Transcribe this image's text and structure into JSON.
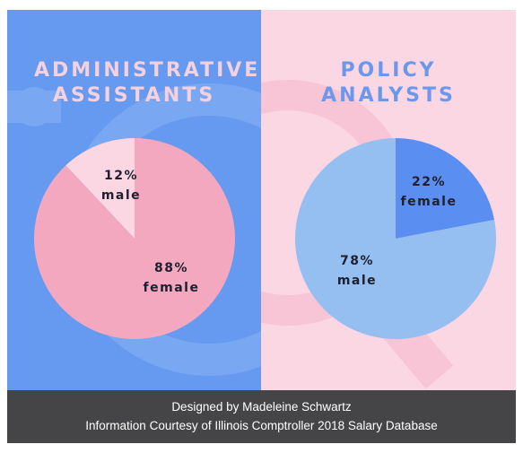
{
  "footer": {
    "line1": "Designed by Madeleine Schwartz",
    "line2": "Information Courtesy of Illinois Comptroller 2018 Salary Database"
  },
  "colors": {
    "left_background": "#6699f0",
    "right_background": "#fbd7e4",
    "footer_background": "#454547",
    "pink_slice": "#f4a8bf",
    "light_pink_slice": "#fbd7e4",
    "light_blue_slice": "#95bff1",
    "blue_slice": "#5a8ef0",
    "label_text": "#1f1f2e"
  },
  "chart_data": [
    {
      "type": "pie",
      "title": "ADMINISTRATIVE ASSISTANTS",
      "slices": [
        {
          "value": 12,
          "pct_label": "12%",
          "label": "male",
          "color": "#fbd7e4"
        },
        {
          "value": 88,
          "pct_label": "88%",
          "label": "female",
          "color": "#f4a8bf"
        }
      ]
    },
    {
      "type": "pie",
      "title": "POLICY ANALYSTS",
      "slices": [
        {
          "value": 22,
          "pct_label": "22%",
          "label": "female",
          "color": "#5a8ef0"
        },
        {
          "value": 78,
          "pct_label": "78%",
          "label": "male",
          "color": "#95bff1"
        }
      ]
    }
  ]
}
